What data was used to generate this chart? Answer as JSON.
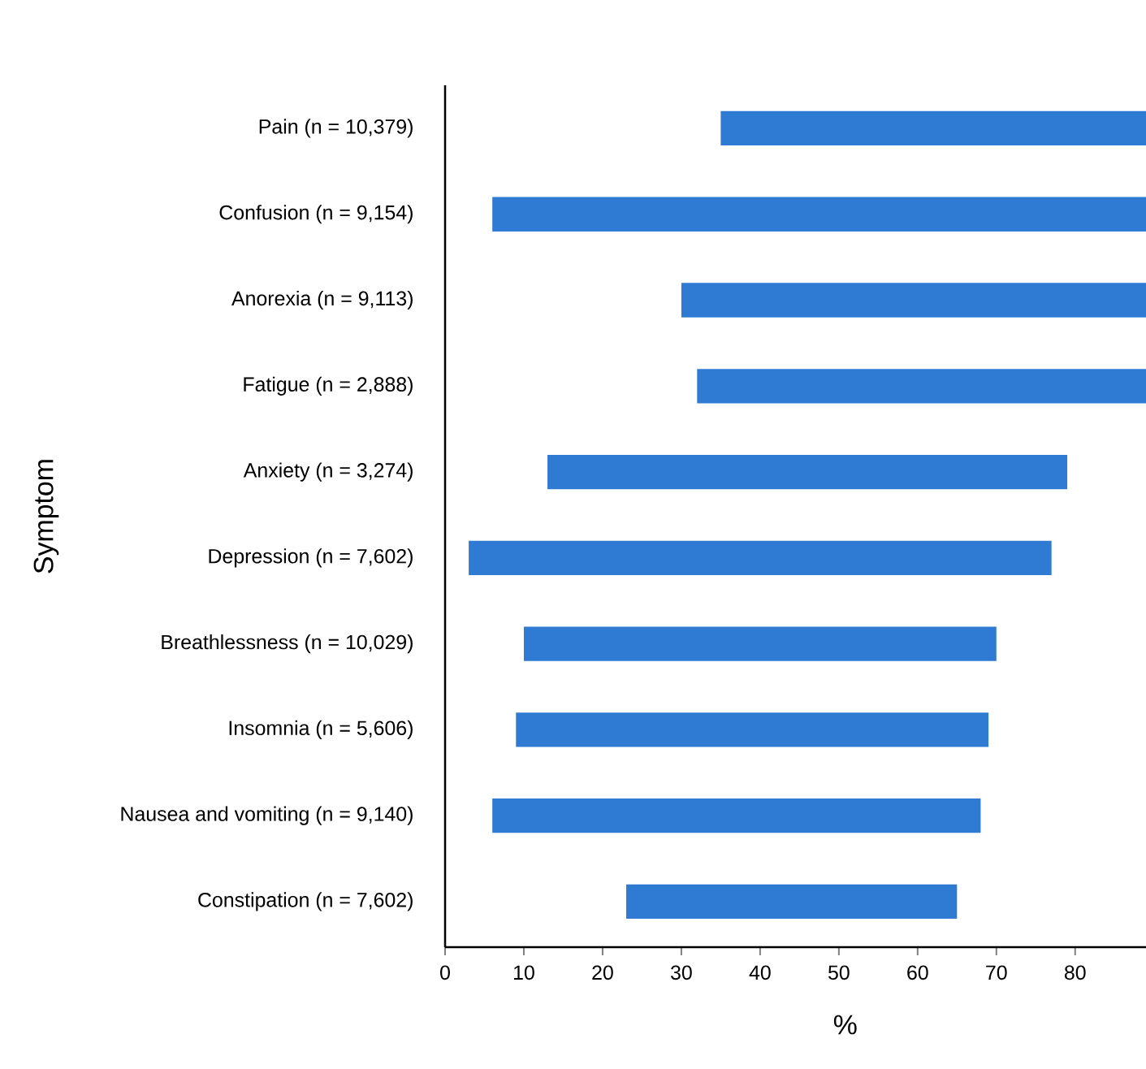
{
  "chart_data": {
    "type": "bar",
    "orientation": "horizontal",
    "xlabel": "%",
    "ylabel": "Symptom",
    "categories": [
      "Pain (n = 10,379)",
      "Confusion (n = 9,154)",
      "Anorexia (n = 9,113)",
      "Fatigue (n = 2,888)",
      "Anxiety (n = 3,274)",
      "Depression (n = 7,602)",
      "Breathlessness (n = 10,029)",
      "Insomnia (n = 5,606)",
      "Nausea and vomiting (n = 9,140)",
      "Constipation (n = 7,602)"
    ],
    "base": [
      35,
      6,
      30,
      32,
      13,
      3,
      10,
      9,
      6,
      23
    ],
    "values": [
      54,
      83,
      59,
      57,
      66,
      74,
      60,
      60,
      62,
      42
    ],
    "color": "#2f7bd4",
    "xlim": [
      0,
      89
    ],
    "xticks": [
      0,
      10,
      20,
      30,
      40,
      50,
      60,
      70,
      80
    ],
    "grid": false
  }
}
